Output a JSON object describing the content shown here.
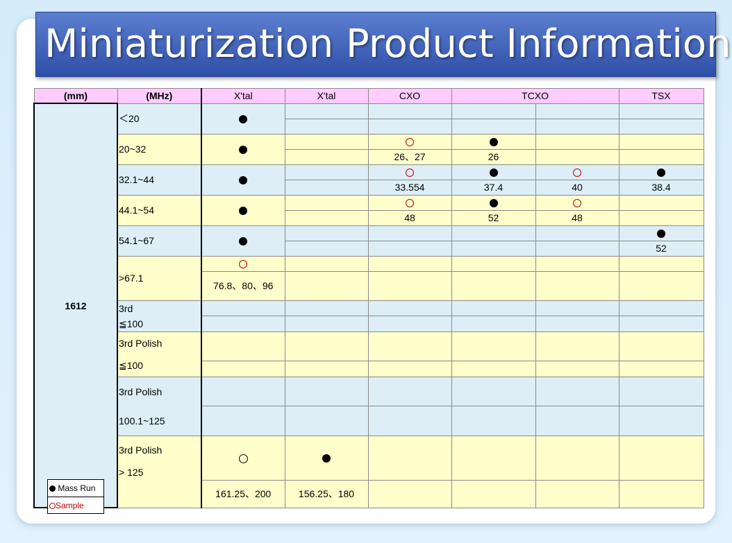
{
  "title": "Miniaturization Product Information",
  "headers": [
    "(mm)",
    "(MHz)",
    "X'tal",
    "X'tal",
    "CXO",
    "TCXO",
    "TSX"
  ],
  "size": "1612",
  "freq": {
    "r1": "＜20",
    "r2": "20~32",
    "r3": "32.1~44",
    "r4": "44.1~54",
    "r5": "54.1~67",
    "r6": ">67.1",
    "r7a": "3rd",
    "r7b": "≦100",
    "r8a": "3rd Polish",
    "r8b": "≦100",
    "r9a": "3rd Polish",
    "r9b": "100.1~125",
    "r10a": "3rd Polish",
    "r10b": " > 125"
  },
  "values": {
    "r2_cxo": "26、27",
    "r2_tcxo": "26",
    "r3_cxo": "33.554",
    "r3_tcxo1": "37.4",
    "r3_tcxo2": "40",
    "r3_tsx": "38.4",
    "r4_cxo": "48",
    "r4_tcxo1": "52",
    "r4_tcxo2": "48",
    "r5_tsx": "52",
    "r6_xtal": "76.8、80、96",
    "r10_xtal1": "161.25、200",
    "r10_xtal2": "156.25、180"
  },
  "legend": {
    "mass": "Mass Run",
    "sample": "Sample"
  },
  "colors": {
    "header": "#ffccff",
    "blue": "#ddeef7",
    "yellow": "#ffffcc",
    "sample": "#c00000"
  }
}
